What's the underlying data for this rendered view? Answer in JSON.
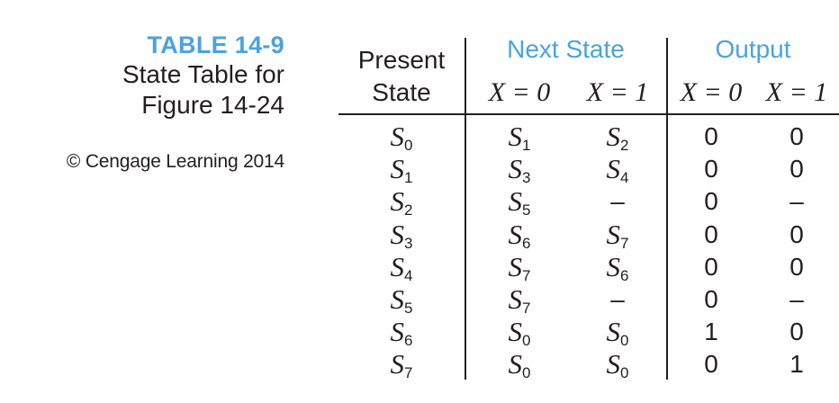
{
  "caption": {
    "table_number": "TABLE 14-9",
    "title_line1": "State Table for",
    "title_line2": "Figure 14-24",
    "credit": "© Cengage Learning 2014"
  },
  "table": {
    "present_state_header_line1": "Present",
    "present_state_header_line2": "State",
    "next_state_header": "Next State",
    "output_header": "Output",
    "x0_label": "X = 0",
    "x1_label": "X = 1",
    "rows": [
      {
        "present": "S0",
        "next_x0": "S1",
        "next_x1": "S2",
        "out_x0": "0",
        "out_x1": "0"
      },
      {
        "present": "S1",
        "next_x0": "S3",
        "next_x1": "S4",
        "out_x0": "0",
        "out_x1": "0"
      },
      {
        "present": "S2",
        "next_x0": "S5",
        "next_x1": "–",
        "out_x0": "0",
        "out_x1": "–"
      },
      {
        "present": "S3",
        "next_x0": "S6",
        "next_x1": "S7",
        "out_x0": "0",
        "out_x1": "0"
      },
      {
        "present": "S4",
        "next_x0": "S7",
        "next_x1": "S6",
        "out_x0": "0",
        "out_x1": "0"
      },
      {
        "present": "S5",
        "next_x0": "S7",
        "next_x1": "–",
        "out_x0": "0",
        "out_x1": "–"
      },
      {
        "present": "S6",
        "next_x0": "S0",
        "next_x1": "S0",
        "out_x0": "1",
        "out_x1": "0"
      },
      {
        "present": "S7",
        "next_x0": "S0",
        "next_x1": "S0",
        "out_x0": "0",
        "out_x1": "1"
      }
    ]
  },
  "colors": {
    "accent": "#4aa3df",
    "text": "#231f20",
    "background": "#ffffff"
  }
}
